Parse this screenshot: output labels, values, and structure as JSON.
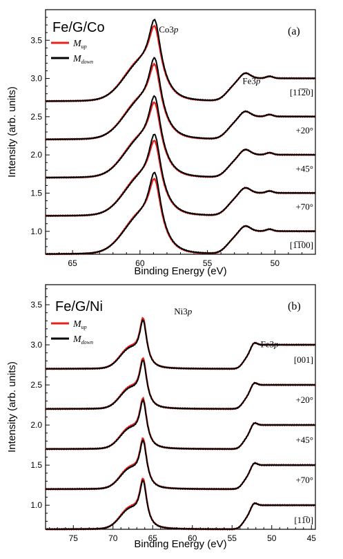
{
  "chart_data": [
    {
      "type": "line",
      "panel_label": "(a)",
      "sample": "Fe/G/Co",
      "xlabel": "Binding Energy (eV)",
      "ylabel": "Intensity (arb. units)",
      "xlim": [
        67,
        47
      ],
      "ylim": [
        0.7,
        3.9
      ],
      "x_reversed": true,
      "xticks": [
        65,
        60,
        55,
        50
      ],
      "yticks": [
        1.0,
        1.5,
        2.0,
        2.5,
        3.0,
        3.5
      ],
      "peak_labels": [
        {
          "main": "Co3",
          "ital": "p",
          "x": 58.6,
          "y": 3.6
        },
        {
          "main": "Fe3",
          "ital": "p",
          "x": 52.4,
          "y": 2.93
        }
      ],
      "legend": {
        "placement": "top-left",
        "entries": [
          {
            "main": "M",
            "sub": "up",
            "color": "#e8201c"
          },
          {
            "main": "M",
            "sub": "down",
            "color": "#000000"
          }
        ]
      },
      "angle_labels": [
        "[11̅2̅0]",
        "+20°",
        "+45°",
        "+70°",
        "[1̅1̅00]"
      ],
      "series_profile": {
        "offsets": [
          3.0,
          2.5,
          2.0,
          1.5,
          1.0
        ],
        "tail_drop": 0.3,
        "main_peak": {
          "x": 58.9,
          "height": 0.78,
          "red_height": 0.68
        },
        "main_shoulder": {
          "x": 60.0,
          "height": 0.42
        },
        "secondary_peak": {
          "x": 53.1,
          "height": 0.15
        },
        "secondary_shoulder": {
          "x": 52.4,
          "height": 0.13
        },
        "small_peak": {
          "x": 50.4,
          "height": 0.025
        }
      }
    },
    {
      "type": "line",
      "panel_label": "(b)",
      "sample": "Fe/G/Ni",
      "xlabel": "Binding Energy (eV)",
      "ylabel": "Intensity (arb. units)",
      "xlim": [
        78.5,
        44.5
      ],
      "ylim": [
        0.7,
        3.75
      ],
      "x_reversed": true,
      "xticks": [
        75,
        70,
        65,
        60,
        55,
        50,
        45
      ],
      "yticks": [
        1.0,
        1.5,
        2.0,
        2.5,
        3.0,
        3.5
      ],
      "peak_labels": [
        {
          "main": "Ni3",
          "ital": "p",
          "x": 62.3,
          "y": 3.38
        },
        {
          "main": "Fe3",
          "ital": "p",
          "x": 51.4,
          "y": 2.97
        }
      ],
      "legend": {
        "placement": "top-left",
        "entries": [
          {
            "main": "M",
            "sub": "up",
            "color": "#e8201c"
          },
          {
            "main": "M",
            "sub": "down",
            "color": "#000000"
          }
        ]
      },
      "angle_labels": [
        "[001]",
        "+20°",
        "+45°",
        "+70°",
        "[11̅0]"
      ],
      "series_profile": {
        "offsets": [
          3.0,
          2.5,
          2.0,
          1.5,
          1.0
        ],
        "tail_drop": 0.3,
        "main_peak": {
          "x": 66.2,
          "height": 0.52,
          "red_height": 0.54
        },
        "main_shoulder": {
          "x": 67.9,
          "height": 0.22
        },
        "secondary_peak": {
          "x": 53.2,
          "height": 0.1
        },
        "secondary_shoulder": {
          "x": 52.5,
          "height": 0.09
        },
        "small_peak": {
          "x": 58.0,
          "height": 0.0
        }
      }
    }
  ]
}
